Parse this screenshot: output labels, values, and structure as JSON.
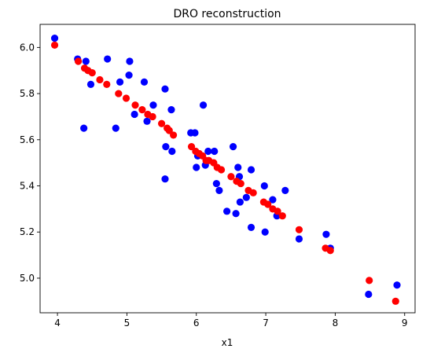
{
  "chart_data": {
    "type": "scatter",
    "title": "DRO reconstruction",
    "xlabel": "x1",
    "ylabel": "",
    "xlim": [
      3.75,
      9.15
    ],
    "ylim": [
      4.85,
      6.1
    ],
    "xticks": [
      "4",
      "5",
      "6",
      "7",
      "8",
      "9"
    ],
    "yticks": [
      "5.0",
      "5.2",
      "5.4",
      "5.6",
      "5.8",
      "6.0"
    ],
    "grid": false,
    "legend": "none",
    "series": [
      {
        "color": "#0000ff",
        "points": [
          [
            3.96,
            6.04
          ],
          [
            4.29,
            5.95
          ],
          [
            4.41,
            5.94
          ],
          [
            4.72,
            5.95
          ],
          [
            5.04,
            5.94
          ],
          [
            4.48,
            5.84
          ],
          [
            4.9,
            5.85
          ],
          [
            5.03,
            5.88
          ],
          [
            5.25,
            5.85
          ],
          [
            5.55,
            5.82
          ],
          [
            4.38,
            5.65
          ],
          [
            4.84,
            5.65
          ],
          [
            5.11,
            5.71
          ],
          [
            5.29,
            5.68
          ],
          [
            5.38,
            5.75
          ],
          [
            5.64,
            5.73
          ],
          [
            6.1,
            5.75
          ],
          [
            5.92,
            5.63
          ],
          [
            5.98,
            5.63
          ],
          [
            5.56,
            5.57
          ],
          [
            5.65,
            5.55
          ],
          [
            5.55,
            5.43
          ],
          [
            6.0,
            5.48
          ],
          [
            6.02,
            5.53
          ],
          [
            6.13,
            5.49
          ],
          [
            6.17,
            5.55
          ],
          [
            6.26,
            5.55
          ],
          [
            6.53,
            5.57
          ],
          [
            6.29,
            5.41
          ],
          [
            6.33,
            5.38
          ],
          [
            6.6,
            5.48
          ],
          [
            6.62,
            5.44
          ],
          [
            6.79,
            5.47
          ],
          [
            6.44,
            5.29
          ],
          [
            6.57,
            5.28
          ],
          [
            6.63,
            5.33
          ],
          [
            6.72,
            5.35
          ],
          [
            6.79,
            5.22
          ],
          [
            6.98,
            5.4
          ],
          [
            7.1,
            5.34
          ],
          [
            7.16,
            5.27
          ],
          [
            7.28,
            5.38
          ],
          [
            6.99,
            5.2
          ],
          [
            7.48,
            5.17
          ],
          [
            7.87,
            5.19
          ],
          [
            7.93,
            5.13
          ],
          [
            8.48,
            4.93
          ],
          [
            8.89,
            4.97
          ]
        ]
      },
      {
        "color": "#ff0000",
        "points": [
          [
            3.96,
            6.01
          ],
          [
            4.3,
            5.94
          ],
          [
            4.39,
            5.91
          ],
          [
            4.44,
            5.9
          ],
          [
            4.5,
            5.89
          ],
          [
            4.61,
            5.86
          ],
          [
            4.71,
            5.84
          ],
          [
            4.88,
            5.8
          ],
          [
            4.99,
            5.78
          ],
          [
            5.12,
            5.75
          ],
          [
            5.22,
            5.73
          ],
          [
            5.3,
            5.71
          ],
          [
            5.37,
            5.7
          ],
          [
            5.5,
            5.67
          ],
          [
            5.58,
            5.65
          ],
          [
            5.61,
            5.64
          ],
          [
            5.67,
            5.62
          ],
          [
            5.93,
            5.57
          ],
          [
            5.99,
            5.55
          ],
          [
            6.04,
            5.54
          ],
          [
            6.09,
            5.53
          ],
          [
            6.14,
            5.51
          ],
          [
            6.18,
            5.51
          ],
          [
            6.25,
            5.5
          ],
          [
            6.3,
            5.48
          ],
          [
            6.36,
            5.47
          ],
          [
            6.5,
            5.44
          ],
          [
            6.58,
            5.42
          ],
          [
            6.64,
            5.41
          ],
          [
            6.75,
            5.38
          ],
          [
            6.82,
            5.37
          ],
          [
            6.97,
            5.33
          ],
          [
            7.03,
            5.32
          ],
          [
            7.1,
            5.3
          ],
          [
            7.17,
            5.29
          ],
          [
            7.24,
            5.27
          ],
          [
            7.48,
            5.21
          ],
          [
            7.86,
            5.13
          ],
          [
            7.93,
            5.12
          ],
          [
            8.49,
            4.99
          ],
          [
            8.87,
            4.9
          ]
        ]
      }
    ]
  }
}
